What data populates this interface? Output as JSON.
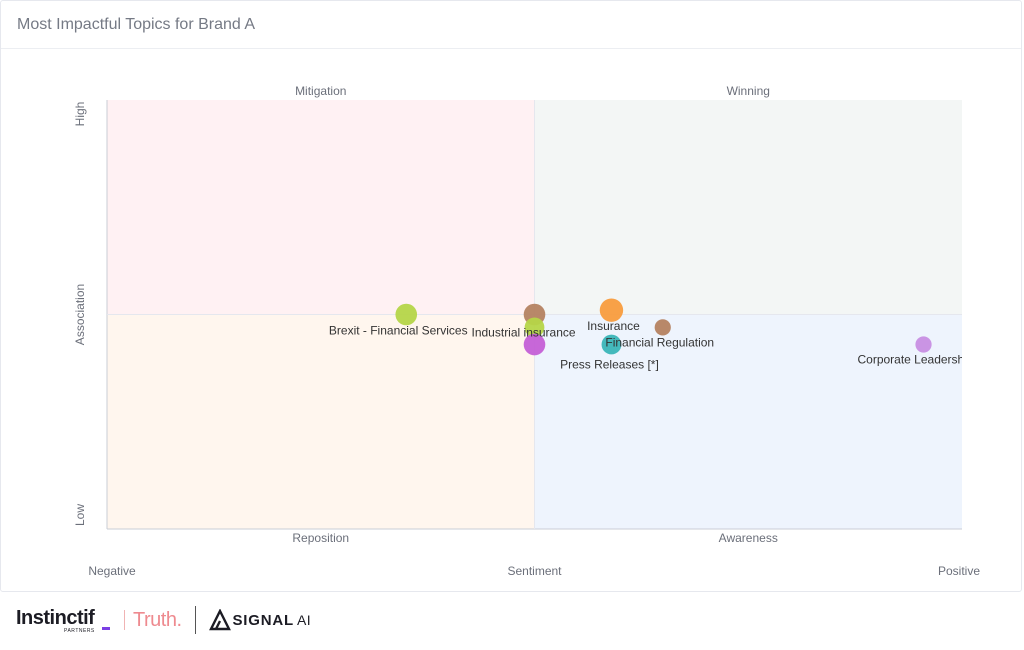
{
  "card": {
    "title": "Most Impactful Topics for Brand A"
  },
  "chart_data": {
    "type": "scatter",
    "title": "Most Impactful Topics for Brand A",
    "xlabel": "Sentiment",
    "ylabel": "Association",
    "x_tick_labels": [
      "Negative",
      "Sentiment",
      "Positive"
    ],
    "y_tick_labels": [
      "Low",
      "Association",
      "High"
    ],
    "xlim": [
      -1,
      1
    ],
    "ylim": [
      0,
      1
    ],
    "quadrants": [
      {
        "label": "Mitigation",
        "position": "top-left",
        "color": "#fff1f3"
      },
      {
        "label": "Winning",
        "position": "top-right",
        "color": "#f3f6f5"
      },
      {
        "label": "Reposition",
        "position": "bottom-left",
        "color": "#fff6ee"
      },
      {
        "label": "Awareness",
        "position": "bottom-right",
        "color": "#eef4fd"
      }
    ],
    "points": [
      {
        "label": "Brexit - Financial Services",
        "x": -0.3,
        "y": 0.5,
        "size": 1.2,
        "color": "#b5d548"
      },
      {
        "label": "Industrial insurance",
        "x": 0.0,
        "y": 0.5,
        "size": 1.2,
        "color": "#b48261"
      },
      {
        "label": "",
        "x": 0.0,
        "y": 0.47,
        "size": 1.1,
        "color": "#b5d548"
      },
      {
        "label": "",
        "x": 0.0,
        "y": 0.43,
        "size": 1.2,
        "color": "#c45fd6"
      },
      {
        "label": "Insurance",
        "x": 0.18,
        "y": 0.51,
        "size": 1.3,
        "color": "#f89c3d"
      },
      {
        "label": "Press Releases [*]",
        "x": 0.18,
        "y": 0.43,
        "size": 1.1,
        "color": "#3ab5b8"
      },
      {
        "label": "Financial Regulation",
        "x": 0.3,
        "y": 0.47,
        "size": 0.9,
        "color": "#b48261"
      },
      {
        "label": "Corporate Leadership",
        "x": 0.91,
        "y": 0.43,
        "size": 0.9,
        "color": "#c78ee3"
      }
    ],
    "grid": false,
    "legend": "none"
  },
  "footer": {
    "instinctif": "Instinctif",
    "instinctif_sub": "PARTNERS",
    "truth": "Truth.",
    "signal": "SIGNAL",
    "ai": "AI"
  }
}
